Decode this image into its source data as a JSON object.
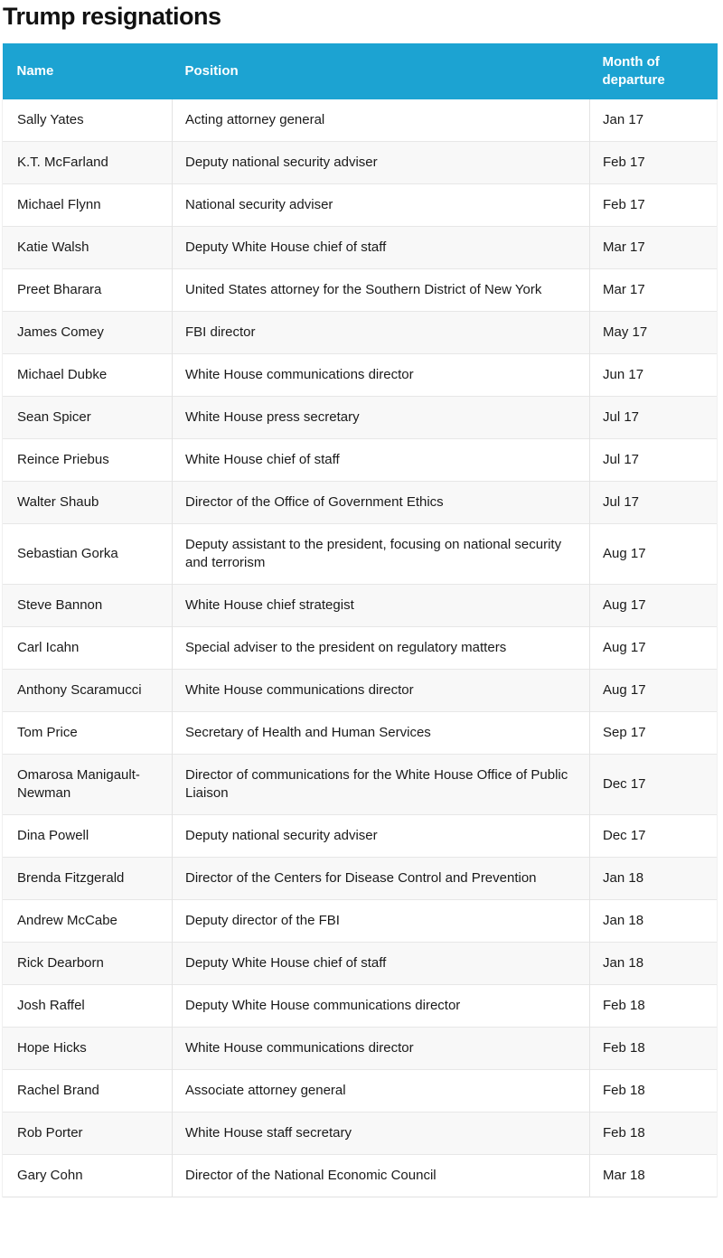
{
  "page": {
    "title": "Trump resignations"
  },
  "colors": {
    "header_bg": "#1ca3d2",
    "header_text": "#ffffff",
    "row_bg": "#ffffff",
    "row_alt_bg": "#f8f8f8",
    "border": "#e3e3e3",
    "body_text": "#1a1a1a"
  },
  "chart_data": {
    "type": "table",
    "title": "Trump resignations",
    "columns": [
      "Name",
      "Position",
      "Month of departure"
    ],
    "rows": [
      [
        "Sally Yates",
        "Acting attorney general",
        "Jan 17"
      ],
      [
        "K.T. McFarland",
        "Deputy national security adviser",
        "Feb 17"
      ],
      [
        "Michael Flynn",
        "National security adviser",
        "Feb 17"
      ],
      [
        "Katie Walsh",
        "Deputy White House chief of staff",
        "Mar 17"
      ],
      [
        "Preet Bharara",
        "United States attorney for the Southern District of New York",
        "Mar 17"
      ],
      [
        "James Comey",
        "FBI director",
        "May 17"
      ],
      [
        "Michael Dubke",
        "White House communications director",
        "Jun 17"
      ],
      [
        "Sean Spicer",
        "White House press secretary",
        "Jul 17"
      ],
      [
        "Reince Priebus",
        "White House chief of staff",
        "Jul 17"
      ],
      [
        "Walter Shaub",
        "Director of the Office of Government Ethics",
        "Jul 17"
      ],
      [
        "Sebastian Gorka",
        "Deputy assistant to the president, focusing on national security and terrorism",
        "Aug 17"
      ],
      [
        "Steve Bannon",
        "White House chief strategist",
        "Aug 17"
      ],
      [
        "Carl Icahn",
        "Special adviser to the president on regulatory matters",
        "Aug 17"
      ],
      [
        "Anthony Scaramucci",
        "White House communications director",
        "Aug 17"
      ],
      [
        "Tom Price",
        "Secretary of Health and Human Services",
        "Sep 17"
      ],
      [
        "Omarosa Manigault-Newman",
        "Director of communications for the White House Office of Public Liaison",
        "Dec 17"
      ],
      [
        "Dina Powell",
        "Deputy national security adviser",
        "Dec 17"
      ],
      [
        "Brenda Fitzgerald",
        "Director of the Centers for Disease Control and Prevention",
        "Jan 18"
      ],
      [
        "Andrew McCabe",
        "Deputy director of the FBI",
        "Jan 18"
      ],
      [
        "Rick Dearborn",
        "Deputy White House chief of staff",
        "Jan 18"
      ],
      [
        "Josh Raffel",
        "Deputy White House communications director",
        "Feb 18"
      ],
      [
        "Hope Hicks",
        "White House communications director",
        "Feb 18"
      ],
      [
        "Rachel Brand",
        "Associate attorney general",
        "Feb 18"
      ],
      [
        "Rob Porter",
        "White House staff secretary",
        "Feb 18"
      ],
      [
        "Gary Cohn",
        "Director of the National Economic Council",
        "Mar 18"
      ]
    ]
  }
}
